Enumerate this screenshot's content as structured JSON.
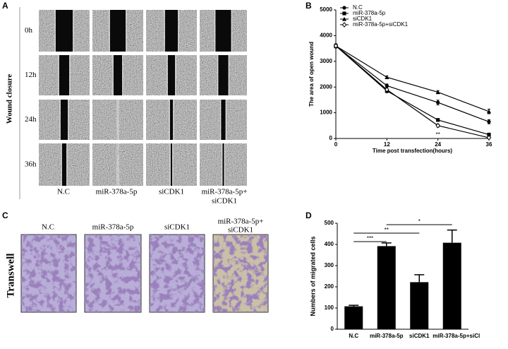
{
  "panel_labels": [
    "A",
    "B",
    "C",
    "D"
  ],
  "panel_a": {
    "side_label": "Wound closure",
    "rows": [
      "0h",
      "12h",
      "24h",
      "36h"
    ],
    "columns": [
      "N.C",
      "miR-378a-5p",
      "siCDK1",
      "miR-378a-5p+",
      "siCDK1"
    ]
  },
  "panel_c": {
    "side_label": "Transwell",
    "columns": [
      "N.C",
      "miR-378a-5p",
      "siCDK1",
      "miR-378a-5p+",
      "siCDK1"
    ]
  },
  "chart_data": [
    {
      "type": "line",
      "xlabel": "Time post transfection(hours)",
      "ylabel": "The area of open wound",
      "x": [
        0,
        12,
        24,
        36
      ],
      "xlim": [
        0,
        36
      ],
      "xticks": [
        0,
        12,
        24,
        36
      ],
      "ylim": [
        0,
        5000
      ],
      "yticks": [
        0,
        1000,
        2000,
        3000,
        4000,
        5000
      ],
      "legend": "upper left",
      "series": [
        {
          "name": "N.C",
          "marker": "circle",
          "color": "#000000",
          "values": [
            3600,
            2050,
            1400,
            650
          ],
          "errors": [
            80,
            70,
            90,
            80
          ]
        },
        {
          "name": "miR-378a-5p",
          "marker": "square",
          "color": "#000000",
          "values": [
            3600,
            1850,
            720,
            150
          ],
          "errors": [
            80,
            70,
            50,
            60
          ]
        },
        {
          "name": "siCDK1",
          "marker": "triangle",
          "color": "#000000",
          "values": [
            3600,
            2380,
            1800,
            1050
          ],
          "errors": [
            80,
            50,
            60,
            90
          ]
        },
        {
          "name": "miR-378a-5p+siCDK1",
          "marker": "diamond",
          "color": "#000000",
          "values": [
            3600,
            1900,
            500,
            30
          ],
          "errors": [
            80,
            80,
            60,
            40
          ]
        }
      ],
      "annotations": [
        "**"
      ]
    },
    {
      "type": "bar",
      "ylabel": "Numbers of migrated cells",
      "categories": [
        "N.C",
        "miR-378a-5p",
        "siCDK1",
        "miR-378a-5p+siCl"
      ],
      "values": [
        108,
        392,
        222,
        408
      ],
      "errors": [
        5,
        15,
        35,
        60
      ],
      "color": "#000000",
      "ylim": [
        0,
        500
      ],
      "yticks": [
        0,
        100,
        200,
        300,
        400,
        500
      ],
      "annotations": [
        "***",
        "**",
        "*"
      ]
    }
  ]
}
